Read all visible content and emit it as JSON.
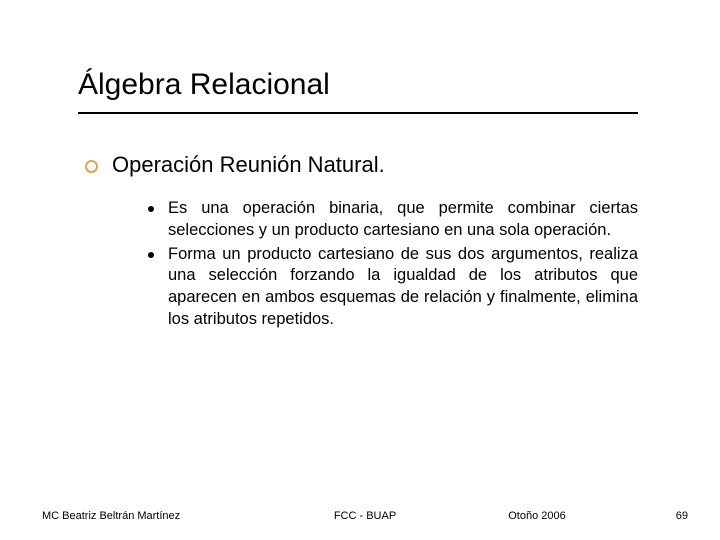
{
  "colors": {
    "bullet_ring": "#e8a24a",
    "bullet_dot": "#000000",
    "text": "#000000",
    "underline": "#000000",
    "background": "#ffffff"
  },
  "typography": {
    "title_fontsize": 30,
    "level1_fontsize": 22,
    "level2_fontsize": 16.5,
    "footer_fontsize": 11,
    "font_family": "Verdana, Arial, sans-serif"
  },
  "title": "Álgebra Relacional",
  "level1": {
    "text": "Operación Reunión Natural."
  },
  "level2": [
    {
      "text": "Es una operación binaria, que permite combinar ciertas selecciones y un producto cartesiano en una sola operación."
    },
    {
      "text": "Forma un producto cartesiano de sus dos argumentos, realiza una selección forzando la igualdad de los atributos que aparecen en ambos esquemas de relación y finalmente, elimina los atributos repetidos."
    }
  ],
  "footer": {
    "left": "MC Beatriz Beltrán Martínez",
    "center": "FCC - BUAP",
    "term": "Otoño 2006",
    "page": "69"
  }
}
